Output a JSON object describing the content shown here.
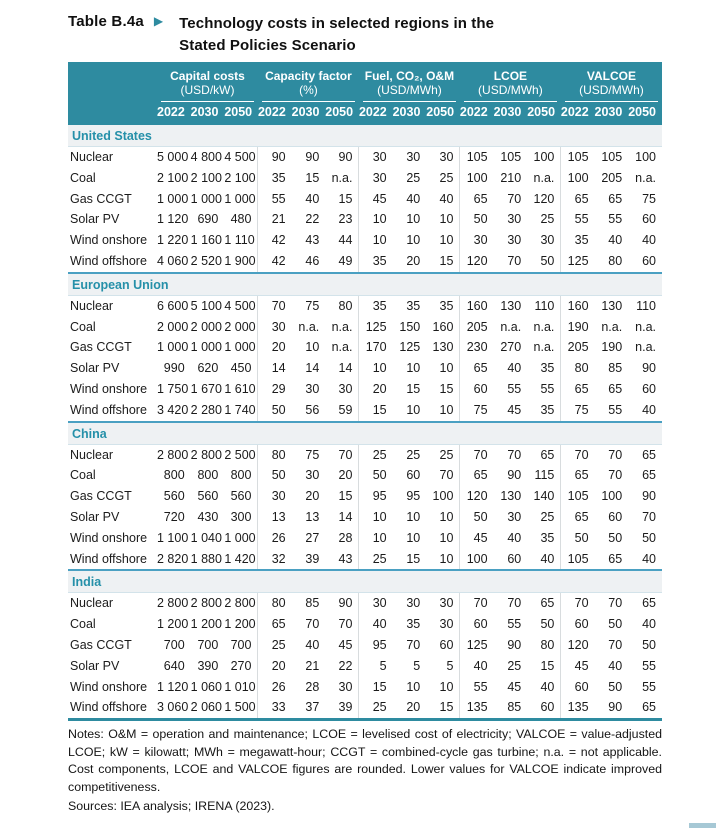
{
  "page": {
    "table_number": "Table B.4a",
    "arrow": "▶",
    "title_line1": "Technology costs in selected regions in the",
    "title_line2": "Stated Policies Scenario"
  },
  "colors": {
    "header_teal": "#2e8ba0",
    "region_text": "#2590a9",
    "region_band_bg": "#eef1f3",
    "section_divider": "#4aa0c2",
    "bottom_rule": "#2e8ba0",
    "corner_bar": "#a6c8d5"
  },
  "table": {
    "column_groups": [
      {
        "label": "Capital costs",
        "unit": "(USD/kW)"
      },
      {
        "label": "Capacity factor",
        "unit": "(%)"
      },
      {
        "label": "Fuel, CO₂, O&M",
        "unit": "(USD/MWh)"
      },
      {
        "label": "LCOE",
        "unit": "(USD/MWh)"
      },
      {
        "label": "VALCOE",
        "unit": "(USD/MWh)"
      }
    ],
    "years": [
      "2022",
      "2030",
      "2050"
    ],
    "regions": [
      {
        "name": "United States",
        "rows": [
          {
            "tech": "Nuclear",
            "values": [
              "5 000",
              "4 800",
              "4 500",
              "90",
              "90",
              "90",
              "30",
              "30",
              "30",
              "105",
              "105",
              "100",
              "105",
              "105",
              "100"
            ]
          },
          {
            "tech": "Coal",
            "values": [
              "2 100",
              "2 100",
              "2 100",
              "35",
              "15",
              "n.a.",
              "30",
              "25",
              "25",
              "100",
              "210",
              "n.a.",
              "100",
              "205",
              "n.a."
            ]
          },
          {
            "tech": "Gas CCGT",
            "values": [
              "1 000",
              "1 000",
              "1 000",
              "55",
              "40",
              "15",
              "45",
              "40",
              "40",
              "65",
              "70",
              "120",
              "65",
              "65",
              "75"
            ]
          },
          {
            "tech": "Solar PV",
            "values": [
              "1 120",
              "690",
              "480",
              "21",
              "22",
              "23",
              "10",
              "10",
              "10",
              "50",
              "30",
              "25",
              "55",
              "55",
              "60"
            ]
          },
          {
            "tech": "Wind onshore",
            "values": [
              "1 220",
              "1 160",
              "1 110",
              "42",
              "43",
              "44",
              "10",
              "10",
              "10",
              "30",
              "30",
              "30",
              "35",
              "40",
              "40"
            ]
          },
          {
            "tech": "Wind offshore",
            "values": [
              "4 060",
              "2 520",
              "1 900",
              "42",
              "46",
              "49",
              "35",
              "20",
              "15",
              "120",
              "70",
              "50",
              "125",
              "80",
              "60"
            ]
          }
        ]
      },
      {
        "name": "European Union",
        "rows": [
          {
            "tech": "Nuclear",
            "values": [
              "6 600",
              "5 100",
              "4 500",
              "70",
              "75",
              "80",
              "35",
              "35",
              "35",
              "160",
              "130",
              "110",
              "160",
              "130",
              "110"
            ]
          },
          {
            "tech": "Coal",
            "values": [
              "2 000",
              "2 000",
              "2 000",
              "30",
              "n.a.",
              "n.a.",
              "125",
              "150",
              "160",
              "205",
              "n.a.",
              "n.a.",
              "190",
              "n.a.",
              "n.a."
            ]
          },
          {
            "tech": "Gas CCGT",
            "values": [
              "1 000",
              "1 000",
              "1 000",
              "20",
              "10",
              "n.a.",
              "170",
              "125",
              "130",
              "230",
              "270",
              "n.a.",
              "205",
              "190",
              "n.a."
            ]
          },
          {
            "tech": "Solar PV",
            "values": [
              "990",
              "620",
              "450",
              "14",
              "14",
              "14",
              "10",
              "10",
              "10",
              "65",
              "40",
              "35",
              "80",
              "85",
              "90"
            ]
          },
          {
            "tech": "Wind onshore",
            "values": [
              "1 750",
              "1 670",
              "1 610",
              "29",
              "30",
              "30",
              "20",
              "15",
              "15",
              "60",
              "55",
              "55",
              "65",
              "65",
              "60"
            ]
          },
          {
            "tech": "Wind offshore",
            "values": [
              "3 420",
              "2 280",
              "1 740",
              "50",
              "56",
              "59",
              "15",
              "10",
              "10",
              "75",
              "45",
              "35",
              "75",
              "55",
              "40"
            ]
          }
        ]
      },
      {
        "name": "China",
        "rows": [
          {
            "tech": "Nuclear",
            "values": [
              "2 800",
              "2 800",
              "2 500",
              "80",
              "75",
              "70",
              "25",
              "25",
              "25",
              "70",
              "70",
              "65",
              "70",
              "70",
              "65"
            ]
          },
          {
            "tech": "Coal",
            "values": [
              "800",
              "800",
              "800",
              "50",
              "30",
              "20",
              "50",
              "60",
              "70",
              "65",
              "90",
              "115",
              "65",
              "70",
              "65"
            ]
          },
          {
            "tech": "Gas CCGT",
            "values": [
              "560",
              "560",
              "560",
              "30",
              "20",
              "15",
              "95",
              "95",
              "100",
              "120",
              "130",
              "140",
              "105",
              "100",
              "90"
            ]
          },
          {
            "tech": "Solar PV",
            "values": [
              "720",
              "430",
              "300",
              "13",
              "13",
              "14",
              "10",
              "10",
              "10",
              "50",
              "30",
              "25",
              "65",
              "60",
              "70"
            ]
          },
          {
            "tech": "Wind onshore",
            "values": [
              "1 100",
              "1 040",
              "1 000",
              "26",
              "27",
              "28",
              "10",
              "10",
              "10",
              "45",
              "40",
              "35",
              "50",
              "50",
              "50"
            ]
          },
          {
            "tech": "Wind offshore",
            "values": [
              "2 820",
              "1 880",
              "1 420",
              "32",
              "39",
              "43",
              "25",
              "15",
              "10",
              "100",
              "60",
              "40",
              "105",
              "65",
              "40"
            ]
          }
        ]
      },
      {
        "name": "India",
        "rows": [
          {
            "tech": "Nuclear",
            "values": [
              "2 800",
              "2 800",
              "2 800",
              "80",
              "85",
              "90",
              "30",
              "30",
              "30",
              "70",
              "70",
              "65",
              "70",
              "70",
              "65"
            ]
          },
          {
            "tech": "Coal",
            "values": [
              "1 200",
              "1 200",
              "1 200",
              "65",
              "70",
              "70",
              "40",
              "35",
              "30",
              "60",
              "55",
              "50",
              "60",
              "50",
              "40"
            ]
          },
          {
            "tech": "Gas CCGT",
            "values": [
              "700",
              "700",
              "700",
              "25",
              "40",
              "45",
              "95",
              "70",
              "60",
              "125",
              "90",
              "80",
              "120",
              "70",
              "50"
            ]
          },
          {
            "tech": "Solar PV",
            "values": [
              "640",
              "390",
              "270",
              "20",
              "21",
              "22",
              "5",
              "5",
              "5",
              "40",
              "25",
              "15",
              "45",
              "40",
              "55"
            ]
          },
          {
            "tech": "Wind onshore",
            "values": [
              "1 120",
              "1 060",
              "1 010",
              "26",
              "28",
              "30",
              "15",
              "10",
              "10",
              "55",
              "45",
              "40",
              "60",
              "50",
              "55"
            ]
          },
          {
            "tech": "Wind offshore",
            "values": [
              "3 060",
              "2 060",
              "1 500",
              "33",
              "37",
              "39",
              "25",
              "20",
              "15",
              "135",
              "85",
              "60",
              "135",
              "90",
              "65"
            ]
          }
        ]
      }
    ]
  },
  "notes": {
    "notes_text": "Notes:  O&M = operation and maintenance; LCOE = levelised cost of electricity; VALCOE = value-adjusted LCOE; kW = kilowatt; MWh = megawatt-hour; CCGT = combined-cycle gas turbine; n.a. = not applicable. Cost components, LCOE and VALCOE figures are rounded. Lower values for VALCOE indicate improved competitiveness.",
    "sources_text": "Sources:  IEA analysis; IRENA (2023)."
  }
}
